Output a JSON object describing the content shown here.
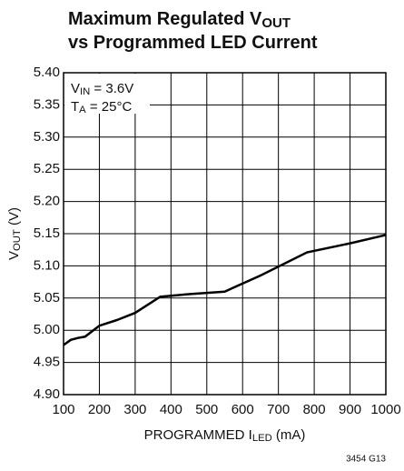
{
  "chart_data": {
    "type": "line",
    "title": [
      [
        {
          "text": "Maximum Regulated V"
        },
        {
          "text": "OUT",
          "sub": true
        }
      ],
      [
        {
          "text": "vs Programmed LED Current"
        }
      ]
    ],
    "xlabel": [
      {
        "text": "PROGRAMMED I"
      },
      {
        "text": "LED",
        "sub": true
      },
      {
        "text": " (mA)"
      }
    ],
    "ylabel": [
      {
        "text": "V"
      },
      {
        "text": "OUT",
        "sub": true
      },
      {
        "text": " (V)"
      }
    ],
    "annotations": [
      [
        {
          "text": "V"
        },
        {
          "text": "IN",
          "sub": true
        },
        {
          "text": " = 3.6V"
        }
      ],
      [
        {
          "text": "T"
        },
        {
          "text": "A",
          "sub": true
        },
        {
          "text": " = 25°C"
        }
      ]
    ],
    "footnote": "3454 G13",
    "x": [
      100,
      120,
      140,
      160,
      200,
      250,
      300,
      370,
      450,
      550,
      650,
      780,
      900,
      1000
    ],
    "series": [
      {
        "color": "#000000",
        "values": [
          4.977,
          4.985,
          4.988,
          4.99,
          5.007,
          5.016,
          5.027,
          5.052,
          5.056,
          5.06,
          5.085,
          5.121,
          5.135,
          5.148
        ]
      }
    ],
    "xlim": [
      100,
      1000
    ],
    "xticks": [
      100,
      200,
      300,
      400,
      500,
      600,
      700,
      800,
      900,
      1000
    ],
    "ylim": [
      4.9,
      5.4
    ],
    "yticks": [
      {
        "value": 4.9,
        "label": "4.90"
      },
      4.95,
      {
        "value": 5.0,
        "label": "5.00"
      },
      5.05,
      {
        "value": 5.1,
        "label": "5.10"
      },
      5.15,
      {
        "value": 5.2,
        "label": "5.20"
      },
      5.25,
      {
        "value": 5.3,
        "label": "5.30"
      },
      5.35,
      {
        "value": 5.4,
        "label": "5.40"
      }
    ],
    "grid": true
  }
}
